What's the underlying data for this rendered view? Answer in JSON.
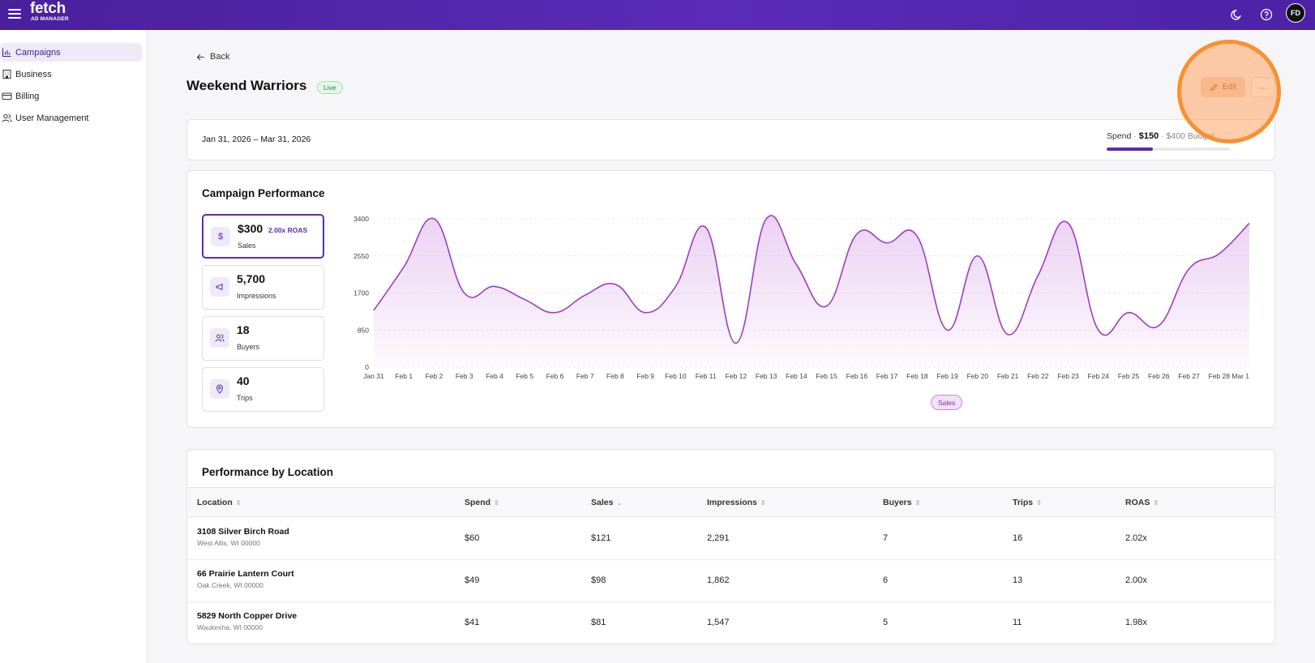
{
  "app": {
    "brand": "fetch",
    "brand_sub": "AD MANAGER",
    "user_initials": "FD"
  },
  "sidebar": {
    "items": [
      {
        "label": "Campaigns",
        "icon": "bar-chart-icon",
        "active": true
      },
      {
        "label": "Business",
        "icon": "building-icon",
        "active": false
      },
      {
        "label": "Billing",
        "icon": "credit-card-icon",
        "active": false
      },
      {
        "label": "User Management",
        "icon": "users-icon",
        "active": false
      }
    ]
  },
  "header": {
    "back_label": "Back",
    "title": "Weekend Warriors",
    "status": "Live",
    "edit_label": "Edit",
    "more_label": "···"
  },
  "summary": {
    "date_range": "Jan 31, 2026 – Mar 31, 2026",
    "spend_label": "Spend",
    "spend_amount": "$150",
    "budget_label": "$400 Budget",
    "spend_fraction": 0.375
  },
  "performance": {
    "title": "Campaign Performance",
    "metrics": [
      {
        "value": "$300",
        "roas": "2.00x ROAS",
        "label": "Sales",
        "icon": "dollar-icon",
        "selected": true
      },
      {
        "value": "5,700",
        "label": "Impressions",
        "icon": "megaphone-icon",
        "selected": false
      },
      {
        "value": "18",
        "label": "Buyers",
        "icon": "users-icon",
        "selected": false
      },
      {
        "value": "40",
        "label": "Trips",
        "icon": "map-pin-icon",
        "selected": false
      }
    ],
    "legend_label": "Sales"
  },
  "chart_data": {
    "type": "area",
    "x": [
      "Jan 31",
      "Feb 1",
      "Feb 2",
      "Feb 3",
      "Feb 4",
      "Feb 5",
      "Feb 6",
      "Feb 7",
      "Feb 8",
      "Feb 9",
      "Feb 10",
      "Feb 11",
      "Feb 12",
      "Feb 13",
      "Feb 14",
      "Feb 15",
      "Feb 16",
      "Feb 17",
      "Feb 18",
      "Feb 19",
      "Feb 20",
      "Feb 21",
      "Feb 22",
      "Feb 23",
      "Feb 24",
      "Feb 25",
      "Feb 26",
      "Feb 27",
      "Feb 28",
      "Mar 1"
    ],
    "series": [
      {
        "name": "Sales",
        "values": [
          1300,
          2300,
          3400,
          1700,
          1850,
          1550,
          1250,
          1650,
          1900,
          1250,
          1850,
          3200,
          550,
          3400,
          2350,
          1400,
          3050,
          2850,
          3000,
          850,
          2550,
          750,
          2100,
          3300,
          850,
          1250,
          950,
          2250,
          2600,
          3300
        ]
      }
    ],
    "ylim": [
      0,
      3400
    ],
    "yticks": [
      "3400",
      "2550",
      "1700",
      "850",
      "0"
    ],
    "grid": true,
    "line_color": "#9b3fc1"
  },
  "locations": {
    "title": "Performance by Location",
    "columns": [
      "Location",
      "Spend",
      "Sales",
      "Impressions",
      "Buyers",
      "Trips",
      "ROAS"
    ],
    "rows": [
      {
        "address": "3108 Silver Birch Road",
        "city": "West Allis, WI 00000",
        "spend": "$60",
        "sales": "$121",
        "impressions": "2,291",
        "buyers": "7",
        "trips": "16",
        "roas": "2.02x"
      },
      {
        "address": "66 Prairie Lantern Court",
        "city": "Oak Creek, WI 00000",
        "spend": "$49",
        "sales": "$98",
        "impressions": "1,862",
        "buyers": "6",
        "trips": "13",
        "roas": "2.00x"
      },
      {
        "address": "5829 North Copper Drive",
        "city": "Waukesha, WI 00000",
        "spend": "$41",
        "sales": "$81",
        "impressions": "1,547",
        "buyers": "5",
        "trips": "11",
        "roas": "1.98x"
      }
    ]
  }
}
